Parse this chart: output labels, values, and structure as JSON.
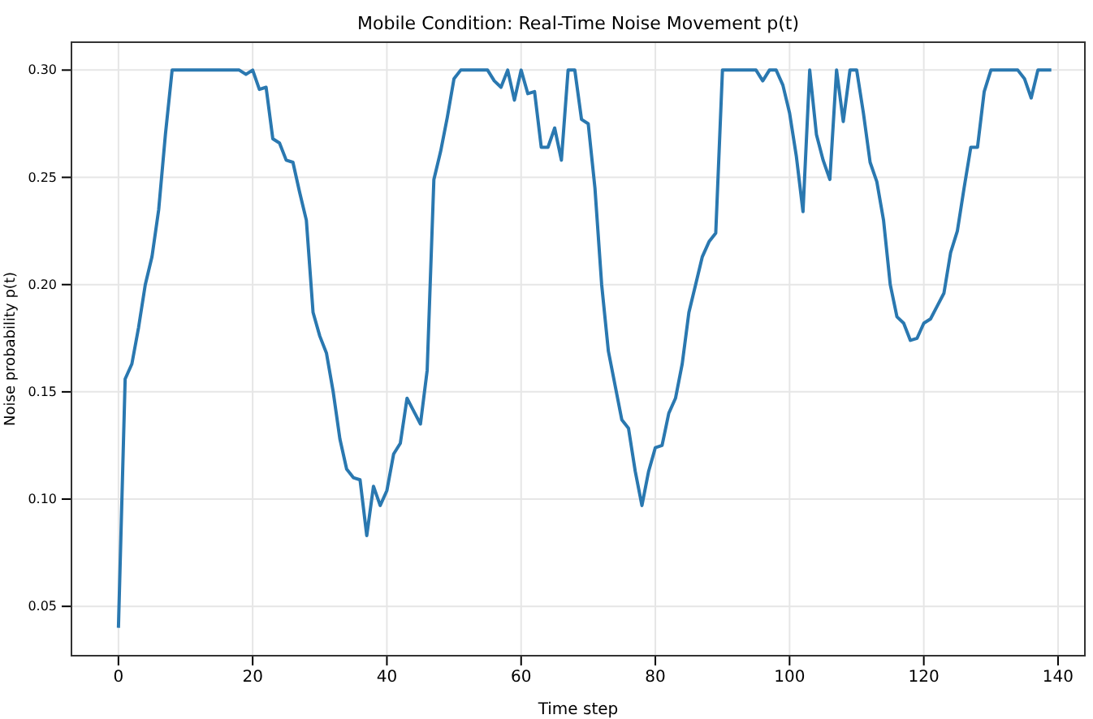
{
  "chart_data": {
    "type": "line",
    "title": "Mobile Condition: Real-Time Noise Movement p(t)",
    "xlabel": "Time step",
    "ylabel": "Noise probability p(t)",
    "x": [
      0,
      1,
      2,
      3,
      4,
      5,
      6,
      7,
      8,
      9,
      10,
      11,
      12,
      13,
      14,
      15,
      16,
      17,
      18,
      19,
      20,
      21,
      22,
      23,
      24,
      25,
      26,
      27,
      28,
      29,
      30,
      31,
      32,
      33,
      34,
      35,
      36,
      37,
      38,
      39,
      40,
      41,
      42,
      43,
      44,
      45,
      46,
      47,
      48,
      49,
      50,
      51,
      52,
      53,
      54,
      55,
      56,
      57,
      58,
      59,
      60,
      61,
      62,
      63,
      64,
      65,
      66,
      67,
      68,
      69,
      70,
      71,
      72,
      73,
      74,
      75,
      76,
      77,
      78,
      79,
      80,
      81,
      82,
      83,
      84,
      85,
      86,
      87,
      88,
      89,
      90,
      91,
      92,
      93,
      94,
      95,
      96,
      97,
      98,
      99,
      100,
      101,
      102,
      103,
      104,
      105,
      106,
      107,
      108,
      109,
      110,
      111,
      112,
      113,
      114,
      115,
      116,
      117,
      118,
      119,
      120,
      121,
      122,
      123,
      124,
      125,
      126,
      127,
      128,
      129,
      130,
      131,
      132,
      133,
      134,
      135,
      136,
      137,
      138,
      139
    ],
    "series": [
      {
        "color": "#2a78b0",
        "values": [
          0.04,
          0.156,
          0.163,
          0.18,
          0.2,
          0.213,
          0.235,
          0.27,
          0.3,
          0.3,
          0.3,
          0.3,
          0.3,
          0.3,
          0.3,
          0.3,
          0.3,
          0.3,
          0.3,
          0.298,
          0.3,
          0.291,
          0.292,
          0.268,
          0.266,
          0.258,
          0.257,
          0.243,
          0.23,
          0.187,
          0.176,
          0.168,
          0.15,
          0.128,
          0.114,
          0.11,
          0.109,
          0.083,
          0.106,
          0.097,
          0.104,
          0.121,
          0.126,
          0.147,
          0.141,
          0.135,
          0.16,
          0.249,
          0.262,
          0.278,
          0.296,
          0.3,
          0.3,
          0.3,
          0.3,
          0.3,
          0.295,
          0.292,
          0.3,
          0.286,
          0.3,
          0.289,
          0.29,
          0.264,
          0.264,
          0.273,
          0.258,
          0.3,
          0.3,
          0.277,
          0.275,
          0.245,
          0.2,
          0.169,
          0.153,
          0.137,
          0.133,
          0.113,
          0.097,
          0.113,
          0.124,
          0.125,
          0.14,
          0.147,
          0.163,
          0.187,
          0.2,
          0.213,
          0.22,
          0.224,
          0.3,
          0.3,
          0.3,
          0.3,
          0.3,
          0.3,
          0.295,
          0.3,
          0.3,
          0.293,
          0.28,
          0.26,
          0.234,
          0.3,
          0.27,
          0.258,
          0.249,
          0.3,
          0.276,
          0.3,
          0.3,
          0.28,
          0.257,
          0.248,
          0.23,
          0.2,
          0.185,
          0.182,
          0.174,
          0.175,
          0.182,
          0.184,
          0.19,
          0.196,
          0.215,
          0.225,
          0.245,
          0.264,
          0.264,
          0.29,
          0.3,
          0.3,
          0.3,
          0.3,
          0.3,
          0.296,
          0.287,
          0.3,
          0.3,
          0.3
        ]
      }
    ],
    "xlim": [
      -7,
      144
    ],
    "xticks": [
      0,
      20,
      40,
      60,
      80,
      100,
      120,
      140
    ],
    "ylim": [
      0.027,
      0.313
    ],
    "yticks": [
      {
        "value": 0.05,
        "label": "0.05"
      },
      {
        "value": 0.1,
        "label": "0.10"
      },
      {
        "value": 0.15,
        "label": "0.15"
      },
      {
        "value": 0.2,
        "label": "0.20"
      },
      {
        "value": 0.25,
        "label": "0.25"
      },
      {
        "value": 0.3,
        "label": "0.30"
      }
    ],
    "grid": true,
    "marker": "none",
    "line_style": "solid"
  }
}
